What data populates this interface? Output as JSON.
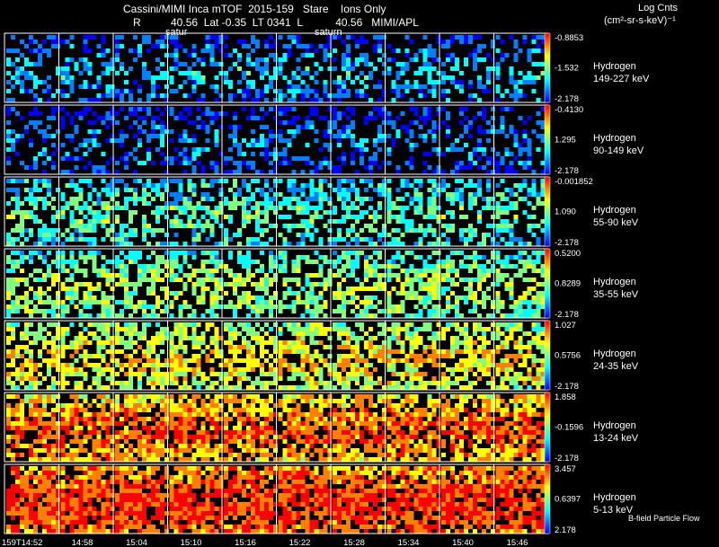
{
  "header": {
    "title": "Cassini/MIMI Inca mTOF  2015-159   Stare    Ions Only",
    "subtitle": "R          40.56  Lat -0.35  LT 0341  L           40.56   MIMI/APL",
    "satur_left": "satur",
    "satur_right": "saturn",
    "units_line1": "Log Cnts",
    "units_line2": "(cm²-sr-s-keV)⁻¹",
    "footer": "B-field Particle Flow"
  },
  "colors": {
    "background": "#000000",
    "grid": "#ffffff",
    "colormap": [
      "#0000ff",
      "#0080ff",
      "#00ffff",
      "#80ff80",
      "#ffff00",
      "#ff8000",
      "#ff0000"
    ]
  },
  "chart_data": {
    "type": "heatmap",
    "time_labels": [
      "159T14:52",
      "14:58",
      "15:04",
      "15:10",
      "15:16",
      "15:22",
      "15:28",
      "15:34",
      "15:40",
      "15:46"
    ],
    "panels": [
      {
        "species": "Hydrogen",
        "energy": "149-227 keV",
        "cbar": [
          "-0.8853",
          "-1.532",
          "-2.178"
        ],
        "level": 0.12
      },
      {
        "species": "Hydrogen",
        "energy": "90-149 keV",
        "cbar": [
          "-0.4130",
          "1.295",
          "-2.178"
        ],
        "level": 0.06
      },
      {
        "species": "Hydrogen",
        "energy": "55-90 keV",
        "cbar": [
          "-0.001852",
          "1.090",
          "-2.178"
        ],
        "level": 0.28
      },
      {
        "species": "Hydrogen",
        "energy": "35-55 keV",
        "cbar": [
          "0.5200",
          "0.8289",
          "-2.178"
        ],
        "level": 0.38
      },
      {
        "species": "Hydrogen",
        "energy": "24-35 keV",
        "cbar": [
          "1.027",
          "0.5756",
          "-2.178"
        ],
        "level": 0.5
      },
      {
        "species": "Hydrogen",
        "energy": "13-24 keV",
        "cbar": [
          "1.858",
          "-0.1596",
          "-2.178"
        ],
        "level": 0.66
      },
      {
        "species": "Hydrogen",
        "energy": "5-13 keV",
        "cbar": [
          "3.457",
          "0.6397",
          "2.178"
        ],
        "level": 0.74
      }
    ]
  }
}
